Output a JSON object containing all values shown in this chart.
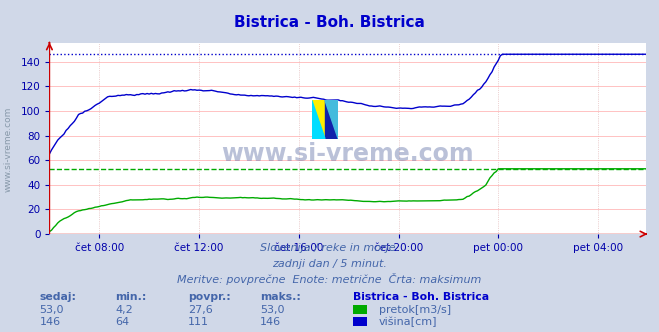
{
  "title": "Bistrica - Boh. Bistrica",
  "title_color": "#0000cc",
  "bg_color": "#d0d8e8",
  "plot_bg_color": "#ffffff",
  "grid_color": "#ffaaaa",
  "x_label_color": "#0000aa",
  "y_label_color": "#0000aa",
  "ylim": [
    0,
    155
  ],
  "yticks": [
    0,
    20,
    40,
    60,
    80,
    100,
    120,
    140
  ],
  "xtick_labels": [
    "čet 08:00",
    "čet 12:00",
    "čet 16:00",
    "čet 20:00",
    "pet 00:00",
    "pet 04:00"
  ],
  "n_points": 288,
  "pretok_color": "#00aa00",
  "visina_color": "#0000cc",
  "pretok_max_line": 53.0,
  "visina_max_line": 146.0,
  "pretok_max_color": "#00aa00",
  "visina_max_color": "#0000cc",
  "watermark": "www.si-vreme.com",
  "watermark_color": "#6677aa",
  "subtitle1": "Slovenija / reke in morje.",
  "subtitle2": "zadnji dan / 5 minut.",
  "subtitle3": "Meritve: povprečne  Enote: metrične  Črta: maksimum",
  "subtitle_color": "#4466aa",
  "legend_title": "Bistrica - Boh. Bistrica",
  "legend_title_color": "#0000cc",
  "label_header_color": "#4466aa",
  "sedaj_pretok": "53,0",
  "min_pretok": "4,2",
  "povpr_pretok": "27,6",
  "maks_pretok": "53,0",
  "sedaj_visina": "146",
  "min_visina": "64",
  "povpr_visina": "111",
  "maks_visina": "146",
  "left_label": "www.si-vreme.com",
  "left_label_color": "#8899aa",
  "arrow_color": "#cc0000"
}
